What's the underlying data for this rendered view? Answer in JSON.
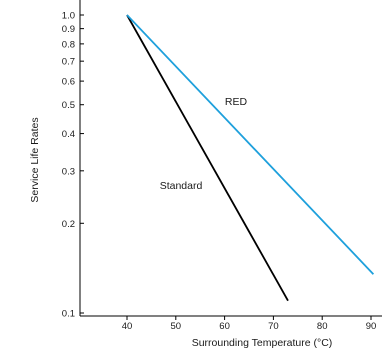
{
  "chart_data": {
    "type": "line",
    "title": "",
    "xlabel": "Surrounding Temperature (°C)",
    "ylabel": "Service Life Rates",
    "x_ticks": [
      40,
      50,
      60,
      70,
      80,
      90
    ],
    "y_ticks": [
      1.0,
      0.9,
      0.8,
      0.7,
      0.6,
      0.5,
      0.4,
      0.3,
      0.2,
      0.1
    ],
    "y_tick_labels": [
      "1.0",
      "0.9",
      "0.8",
      "0.7",
      "0.6",
      "0.5",
      "0.4",
      "0.3",
      "0.2",
      "0.1"
    ],
    "x_tick_labels": [
      "40",
      "50",
      "60",
      "70",
      "80",
      "90"
    ],
    "xlim": [
      30.5,
      92
    ],
    "ylim": [
      0.1,
      1.0
    ],
    "y_scale": "log",
    "grid": false,
    "series": [
      {
        "name": "Standard",
        "color": "#000000",
        "points": [
          {
            "x": 40,
            "y": 1.0
          },
          {
            "x": 73,
            "y": 0.11
          }
        ]
      },
      {
        "name": "RED",
        "color": "#1ea0dc",
        "points": [
          {
            "x": 40,
            "y": 1.0
          },
          {
            "x": 90.5,
            "y": 0.135
          }
        ]
      }
    ]
  }
}
